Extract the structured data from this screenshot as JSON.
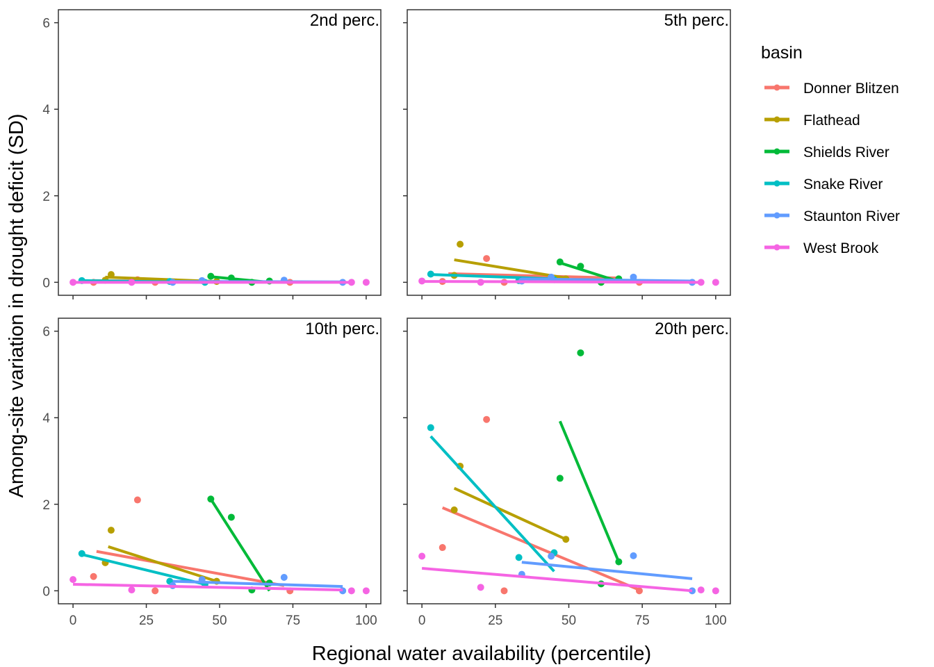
{
  "chart_data": {
    "type": "scatter",
    "xlabel": "Regional water availability (percentile)",
    "ylabel": "Among-site variation in drought deficit (SD)",
    "xlim": [
      -5,
      105
    ],
    "ylim": [
      -0.3,
      6.3
    ],
    "x_ticks": [
      0,
      25,
      50,
      75,
      100
    ],
    "y_ticks": [
      0,
      2,
      4,
      6
    ],
    "grid": false,
    "legend": {
      "title": "basin",
      "placement": "right",
      "entries": [
        {
          "name": "Donner Blitzen",
          "color": "#F8766D"
        },
        {
          "name": "Flathead",
          "color": "#B79F00"
        },
        {
          "name": "Shields River",
          "color": "#00BA38"
        },
        {
          "name": "Snake River",
          "color": "#00BFC4"
        },
        {
          "name": "Staunton River",
          "color": "#619CFF"
        },
        {
          "name": "West Brook",
          "color": "#F564E3"
        }
      ]
    },
    "panels": [
      {
        "title": "2nd perc.",
        "series": [
          {
            "name": "Donner Blitzen",
            "points": [
              [
                7,
                0.0
              ],
              [
                22,
                0.06
              ],
              [
                28,
                0.0
              ],
              [
                74,
                0.0
              ]
            ],
            "fit": [
              [
                7,
                0.04
              ],
              [
                74,
                0.0
              ]
            ]
          },
          {
            "name": "Flathead",
            "points": [
              [
                11,
                0.05
              ],
              [
                13,
                0.18
              ],
              [
                49,
                0.02
              ]
            ],
            "fit": [
              [
                11,
                0.12
              ],
              [
                49,
                0.02
              ]
            ]
          },
          {
            "name": "Shields River",
            "points": [
              [
                47,
                0.14
              ],
              [
                54,
                0.1
              ],
              [
                61,
                0.0
              ],
              [
                67,
                0.03
              ]
            ],
            "fit": [
              [
                47,
                0.13
              ],
              [
                67,
                0.0
              ]
            ]
          },
          {
            "name": "Snake River",
            "points": [
              [
                3,
                0.04
              ],
              [
                33,
                0.02
              ],
              [
                45,
                0.0
              ]
            ],
            "fit": [
              [
                3,
                0.04
              ],
              [
                45,
                0.0
              ]
            ]
          },
          {
            "name": "Staunton River",
            "points": [
              [
                34,
                0.0
              ],
              [
                44,
                0.04
              ],
              [
                72,
                0.05
              ],
              [
                92,
                0.0
              ]
            ],
            "fit": [
              [
                34,
                0.02
              ],
              [
                92,
                0.01
              ]
            ]
          },
          {
            "name": "West Brook",
            "points": [
              [
                0,
                0.0
              ],
              [
                20,
                0.0
              ],
              [
                95,
                0.0
              ],
              [
                100,
                0.0
              ]
            ],
            "fit": [
              [
                0,
                0.0
              ],
              [
                95,
                0.0
              ]
            ]
          }
        ]
      },
      {
        "title": "5th perc.",
        "series": [
          {
            "name": "Donner Blitzen",
            "points": [
              [
                7,
                0.02
              ],
              [
                22,
                0.55
              ],
              [
                28,
                0.0
              ],
              [
                74,
                0.0
              ]
            ],
            "fit": [
              [
                9,
                0.2
              ],
              [
                67,
                0.1
              ]
            ]
          },
          {
            "name": "Flathead",
            "points": [
              [
                11,
                0.16
              ],
              [
                13,
                0.88
              ],
              [
                49,
                0.08
              ]
            ],
            "fit": [
              [
                11,
                0.52
              ],
              [
                49,
                0.1
              ]
            ]
          },
          {
            "name": "Shields River",
            "points": [
              [
                47,
                0.47
              ],
              [
                54,
                0.37
              ],
              [
                61,
                0.0
              ],
              [
                67,
                0.08
              ]
            ],
            "fit": [
              [
                47,
                0.45
              ],
              [
                67,
                0.02
              ]
            ]
          },
          {
            "name": "Snake River",
            "points": [
              [
                3,
                0.19
              ],
              [
                33,
                0.04
              ],
              [
                45,
                0.06
              ]
            ],
            "fit": [
              [
                3,
                0.18
              ],
              [
                45,
                0.08
              ]
            ]
          },
          {
            "name": "Staunton River",
            "points": [
              [
                34,
                0.03
              ],
              [
                44,
                0.12
              ],
              [
                72,
                0.12
              ],
              [
                92,
                0.0
              ]
            ],
            "fit": [
              [
                34,
                0.08
              ],
              [
                92,
                0.03
              ]
            ]
          },
          {
            "name": "West Brook",
            "points": [
              [
                0,
                0.03
              ],
              [
                20,
                0.0
              ],
              [
                95,
                0.0
              ],
              [
                100,
                0.0
              ]
            ],
            "fit": [
              [
                0,
                0.02
              ],
              [
                95,
                0.0
              ]
            ]
          }
        ]
      },
      {
        "title": "10th perc.",
        "series": [
          {
            "name": "Donner Blitzen",
            "points": [
              [
                7,
                0.33
              ],
              [
                22,
                2.1
              ],
              [
                28,
                0.0
              ],
              [
                74,
                0.0
              ]
            ],
            "fit": [
              [
                8,
                0.91
              ],
              [
                72,
                0.12
              ]
            ]
          },
          {
            "name": "Flathead",
            "points": [
              [
                11,
                0.65
              ],
              [
                13,
                1.4
              ],
              [
                49,
                0.22
              ]
            ],
            "fit": [
              [
                12,
                1.02
              ],
              [
                49,
                0.22
              ]
            ]
          },
          {
            "name": "Shields River",
            "points": [
              [
                47,
                2.12
              ],
              [
                54,
                1.7
              ],
              [
                61,
                0.02
              ],
              [
                67,
                0.18
              ]
            ],
            "fit": [
              [
                47,
                2.12
              ],
              [
                67,
                0.0
              ]
            ]
          },
          {
            "name": "Snake River",
            "points": [
              [
                3,
                0.86
              ],
              [
                33,
                0.22
              ],
              [
                45,
                0.15
              ]
            ],
            "fit": [
              [
                3,
                0.84
              ],
              [
                45,
                0.15
              ]
            ]
          },
          {
            "name": "Staunton River",
            "points": [
              [
                34,
                0.12
              ],
              [
                44,
                0.26
              ],
              [
                72,
                0.31
              ],
              [
                92,
                0.0
              ]
            ],
            "fit": [
              [
                34,
                0.22
              ],
              [
                92,
                0.1
              ]
            ]
          },
          {
            "name": "West Brook",
            "points": [
              [
                0,
                0.26
              ],
              [
                20,
                0.02
              ],
              [
                95,
                0.0
              ],
              [
                100,
                0.0
              ]
            ],
            "fit": [
              [
                0,
                0.15
              ],
              [
                92,
                0.02
              ]
            ]
          }
        ]
      },
      {
        "title": "20th perc.",
        "series": [
          {
            "name": "Donner Blitzen",
            "points": [
              [
                7,
                1.0
              ],
              [
                22,
                3.96
              ],
              [
                28,
                0.0
              ],
              [
                74,
                0.0
              ]
            ],
            "fit": [
              [
                7,
                1.92
              ],
              [
                74,
                0.02
              ]
            ]
          },
          {
            "name": "Flathead",
            "points": [
              [
                11,
                1.87
              ],
              [
                13,
                2.88
              ],
              [
                49,
                1.19
              ]
            ],
            "fit": [
              [
                11,
                2.37
              ],
              [
                49,
                1.19
              ]
            ]
          },
          {
            "name": "Shields River",
            "points": [
              [
                47,
                2.6
              ],
              [
                54,
                5.5
              ],
              [
                61,
                0.16
              ],
              [
                67,
                0.67
              ]
            ],
            "fit": [
              [
                47,
                3.92
              ],
              [
                67,
                0.67
              ]
            ]
          },
          {
            "name": "Snake River",
            "points": [
              [
                3,
                3.77
              ],
              [
                33,
                0.77
              ],
              [
                45,
                0.88
              ]
            ],
            "fit": [
              [
                3,
                3.57
              ],
              [
                45,
                0.45
              ]
            ]
          },
          {
            "name": "Staunton River",
            "points": [
              [
                34,
                0.38
              ],
              [
                44,
                0.8
              ],
              [
                72,
                0.81
              ],
              [
                92,
                0.0
              ]
            ],
            "fit": [
              [
                34,
                0.66
              ],
              [
                92,
                0.28
              ]
            ]
          },
          {
            "name": "West Brook",
            "points": [
              [
                0,
                0.8
              ],
              [
                20,
                0.08
              ],
              [
                95,
                0.02
              ],
              [
                100,
                0.0
              ]
            ],
            "fit": [
              [
                0,
                0.52
              ],
              [
                92,
                0.0
              ]
            ]
          }
        ]
      }
    ]
  }
}
